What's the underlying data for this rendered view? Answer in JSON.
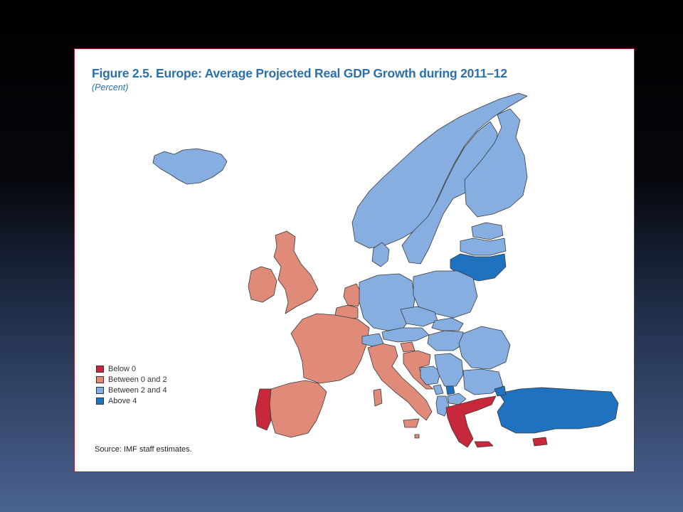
{
  "figure": {
    "title": "Figure 2.5.  Europe: Average Projected Real GDP Growth during 2011–12",
    "subtitle": "(Percent)",
    "source": "Source: IMF staff estimates."
  },
  "legend": [
    {
      "label": "Below 0",
      "color": "#c8283c"
    },
    {
      "label": "Between 0 and 2",
      "color": "#e08a7a"
    },
    {
      "label": "Between 2 and 4",
      "color": "#86aee0"
    },
    {
      "label": "Above 4",
      "color": "#1f72c0"
    }
  ],
  "colors": {
    "below_0": "#c8283c",
    "between_0_and_2": "#e08a7a",
    "between_2_and_4": "#86aee0",
    "above_4": "#1f72c0",
    "panel_border": "#a51e2e",
    "title": "#2a6fb0"
  },
  "regions": [
    {
      "name": "Iceland",
      "category": "between_2_and_4"
    },
    {
      "name": "Norway",
      "category": "between_2_and_4"
    },
    {
      "name": "Sweden",
      "category": "between_2_and_4"
    },
    {
      "name": "Finland",
      "category": "between_2_and_4"
    },
    {
      "name": "Estonia",
      "category": "between_2_and_4"
    },
    {
      "name": "Latvia",
      "category": "between_2_and_4"
    },
    {
      "name": "Lithuania",
      "category": "above_4"
    },
    {
      "name": "Denmark",
      "category": "between_2_and_4"
    },
    {
      "name": "Ireland",
      "category": "between_0_and_2"
    },
    {
      "name": "United Kingdom",
      "category": "between_0_and_2"
    },
    {
      "name": "Netherlands",
      "category": "between_0_and_2"
    },
    {
      "name": "Belgium",
      "category": "between_0_and_2"
    },
    {
      "name": "France",
      "category": "between_0_and_2"
    },
    {
      "name": "Spain",
      "category": "between_0_and_2"
    },
    {
      "name": "Portugal",
      "category": "below_0"
    },
    {
      "name": "Italy",
      "category": "between_0_and_2"
    },
    {
      "name": "Germany",
      "category": "between_2_and_4"
    },
    {
      "name": "Poland",
      "category": "between_2_and_4"
    },
    {
      "name": "Czech Republic",
      "category": "between_2_and_4"
    },
    {
      "name": "Austria",
      "category": "between_2_and_4"
    },
    {
      "name": "Switzerland",
      "category": "between_2_and_4"
    },
    {
      "name": "Slovak Republic",
      "category": "between_2_and_4"
    },
    {
      "name": "Hungary",
      "category": "between_2_and_4"
    },
    {
      "name": "Romania",
      "category": "between_2_and_4"
    },
    {
      "name": "Slovenia",
      "category": "between_0_and_2"
    },
    {
      "name": "Croatia",
      "category": "between_0_and_2"
    },
    {
      "name": "Bosnia and Herzegovina",
      "category": "between_2_and_4"
    },
    {
      "name": "Serbia",
      "category": "between_2_and_4"
    },
    {
      "name": "Bulgaria",
      "category": "between_2_and_4"
    },
    {
      "name": "Montenegro",
      "category": "between_2_and_4"
    },
    {
      "name": "Kosovo",
      "category": "above_4"
    },
    {
      "name": "Macedonia",
      "category": "between_2_and_4"
    },
    {
      "name": "Albania",
      "category": "between_2_and_4"
    },
    {
      "name": "Greece",
      "category": "below_0"
    },
    {
      "name": "Turkey",
      "category": "above_4"
    },
    {
      "name": "Cyprus",
      "category": "below_0"
    },
    {
      "name": "Malta",
      "category": "between_0_and_2"
    }
  ]
}
